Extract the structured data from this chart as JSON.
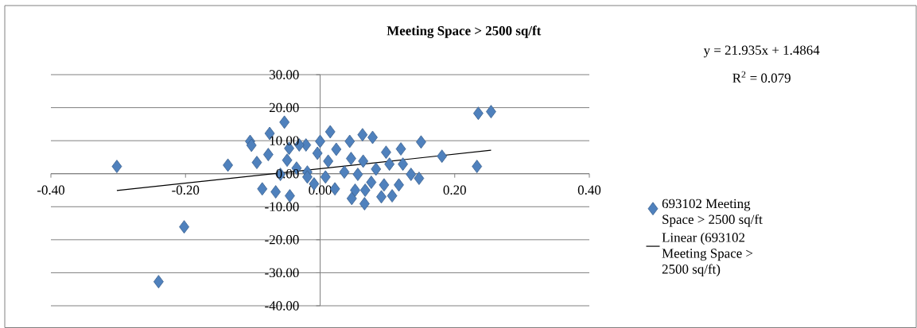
{
  "chart_data": {
    "type": "scatter",
    "title": "Meeting Space  > 2500 sq/ft",
    "xlim": [
      -0.4,
      0.4
    ],
    "xticks": [
      {
        "value": -0.4,
        "label": "-0.40"
      },
      {
        "value": -0.2,
        "label": "-0.20"
      },
      {
        "value": 0,
        "label": "0.00"
      },
      {
        "value": 0.2,
        "label": "0.20"
      },
      {
        "value": 0.4,
        "label": "0.40"
      }
    ],
    "ylim": [
      -40,
      30
    ],
    "yticks": [
      {
        "value": -40,
        "label": "-40.00"
      },
      {
        "value": -30,
        "label": "-30.00"
      },
      {
        "value": -20,
        "label": "-20.00"
      },
      {
        "value": -10,
        "label": "-10.00"
      },
      {
        "value": 0,
        "label": "0.00"
      },
      {
        "value": 10,
        "label": "10.00"
      },
      {
        "value": 20,
        "label": "20.00"
      },
      {
        "value": 30,
        "label": "30.00"
      }
    ],
    "grid": "y",
    "legend": "right",
    "annotations": [
      "y = 21.935x + 1.4864",
      "R$^{2}$ = 0.079"
    ],
    "series": [
      {
        "name": "693102 Meeting Space > 2500 sq/ft",
        "color": "#4f81bd",
        "marker": "diamond",
        "x": [
          -0.302,
          -0.137,
          -0.202,
          -0.24,
          -0.053,
          -0.075,
          -0.104,
          -0.102,
          -0.094,
          -0.077,
          -0.086,
          -0.066,
          -0.045,
          -0.049,
          -0.046,
          0.235,
          0.254,
          0.15,
          0.181,
          0.233,
          0.147,
          0.135,
          0.12,
          0.098,
          0.117,
          0.107,
          0.091,
          0.066,
          0.047,
          0.067,
          0.022,
          -0.009,
          0.015,
          0.063,
          0.078,
          0.044,
          0.0,
          -0.021,
          -0.004,
          0.024,
          0.064,
          0.036,
          0.056,
          0.083,
          0.103,
          0.123,
          0.076,
          0.008,
          -0.019,
          0.046,
          0.012,
          0.095,
          0.052,
          -0.031,
          -0.019,
          -0.035,
          -0.059
        ],
        "values": [
          2.2,
          2.6,
          -16.1,
          -32.7,
          15.6,
          12.2,
          9.8,
          8.6,
          3.4,
          5.8,
          -4.6,
          -5.5,
          -6.7,
          4.1,
          7.7,
          18.3,
          18.8,
          9.6,
          5.3,
          2.2,
          -1.4,
          -0.2,
          7.5,
          6.5,
          -3.4,
          -6.7,
          -7.0,
          -9.1,
          -7.5,
          -5.0,
          -4.6,
          -3.1,
          12.7,
          11.8,
          11.0,
          9.8,
          9.8,
          8.7,
          6.2,
          7.4,
          3.8,
          0.5,
          -0.2,
          1.4,
          2.9,
          2.9,
          -2.6,
          -1.0,
          0.5,
          4.6,
          3.8,
          -3.4,
          -5.0,
          8.7,
          -1.0,
          1.7,
          -0.2
        ]
      },
      {
        "name": "Linear (693102 Meeting Space > 2500 sq/ft)",
        "type": "line",
        "color": "#000000",
        "x": [
          -0.302,
          0.254
        ],
        "values": [
          -5.1,
          7.1
        ]
      }
    ]
  }
}
